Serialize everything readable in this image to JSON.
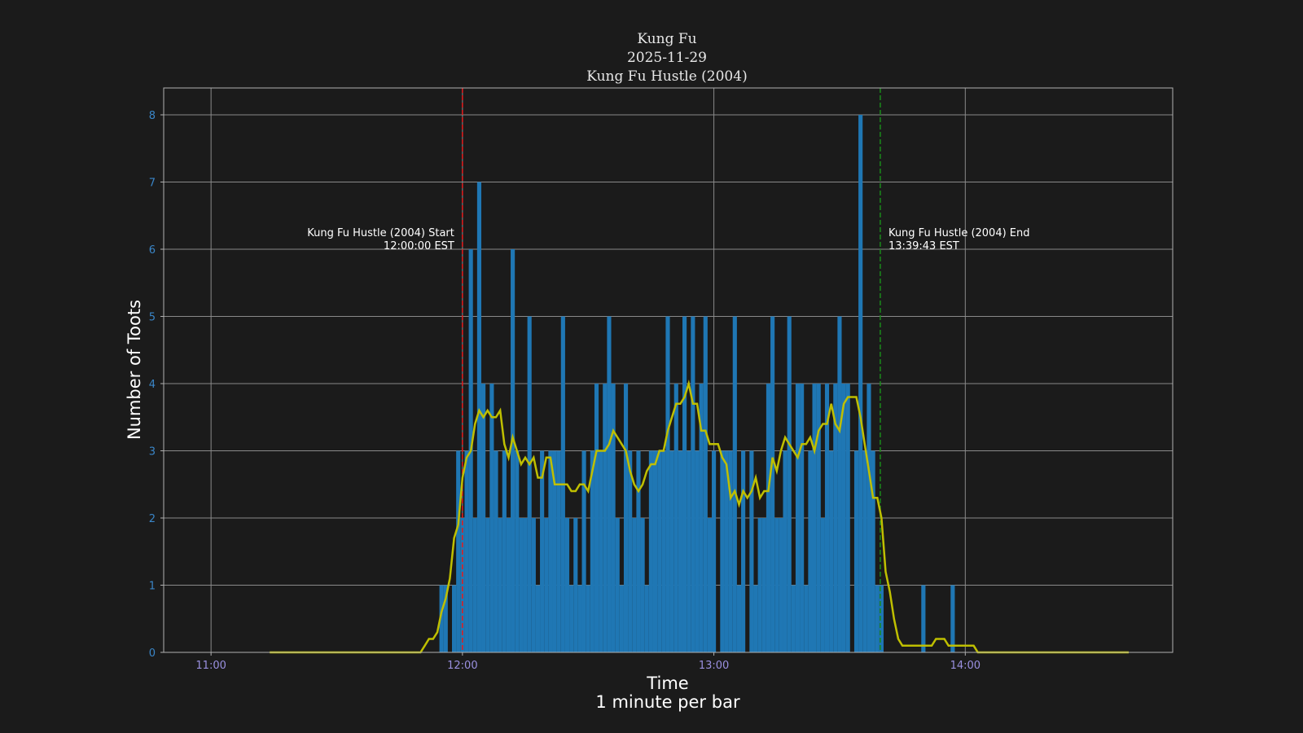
{
  "chart_data": {
    "type": "bar",
    "title_lines": [
      "Kung Fu",
      "2025-11-29",
      "Kung Fu Hustle (2004)"
    ],
    "xlabel": "Time",
    "xlabel_sub": "1 minute per bar",
    "ylabel": "Number of Toots",
    "x_ticks": [
      "11:00",
      "12:00",
      "13:00",
      "14:00"
    ],
    "y_ticks": [
      0,
      1,
      2,
      3,
      4,
      5,
      6,
      7,
      8
    ],
    "xlim": [
      "10:48.7",
      "14:49.5"
    ],
    "ylim": [
      0,
      8.4
    ],
    "grid": true,
    "bar_color": "#1f77b4",
    "line_color": "#bfbf00",
    "bars": {
      "first_minute": "11:55",
      "values": [
        1,
        1,
        0,
        1,
        3,
        2,
        3,
        6,
        2,
        7,
        4,
        2,
        4,
        3,
        2,
        3,
        2,
        6,
        3,
        2,
        2,
        5,
        2,
        1,
        3,
        2,
        3,
        3,
        3,
        5,
        2,
        1,
        2,
        1,
        3,
        1,
        3,
        4,
        3,
        4,
        5,
        4,
        2,
        1,
        4,
        3,
        2,
        3,
        2,
        1,
        3,
        3,
        3,
        3,
        5,
        3,
        4,
        3,
        5,
        3,
        5,
        3,
        4,
        5,
        2,
        3,
        0,
        3,
        3,
        3,
        5,
        1,
        3,
        0,
        3,
        1,
        2,
        2,
        4,
        5,
        2,
        2,
        3,
        5,
        1,
        4,
        4,
        1,
        3,
        4,
        4,
        2,
        4,
        3,
        4,
        5,
        4,
        4,
        0,
        3,
        8,
        3,
        4,
        3,
        1,
        1,
        0,
        0,
        0,
        0,
        0,
        0,
        0,
        0,
        0,
        1,
        0,
        0,
        0,
        0,
        0,
        0,
        1
      ]
    },
    "rolling_line": {
      "start": "11:14",
      "end": "14:39"
    },
    "annotations": [
      {
        "name": "start",
        "time": "12:00:00",
        "color": "#e41a1c",
        "line1": "Kung Fu Hustle (2004) Start",
        "line2": "12:00:00 EST"
      },
      {
        "name": "end",
        "time": "13:39:43",
        "color": "#1a8a1a",
        "line1": "Kung Fu Hustle (2004) End",
        "line2": "13:39:43 EST"
      }
    ],
    "colors": {
      "background": "#1b1b1b",
      "y_tick_labels": "#3a86c8",
      "x_tick_labels": "#9a90e0",
      "text": "#ffffff",
      "grid": "#8a8a8a"
    }
  }
}
